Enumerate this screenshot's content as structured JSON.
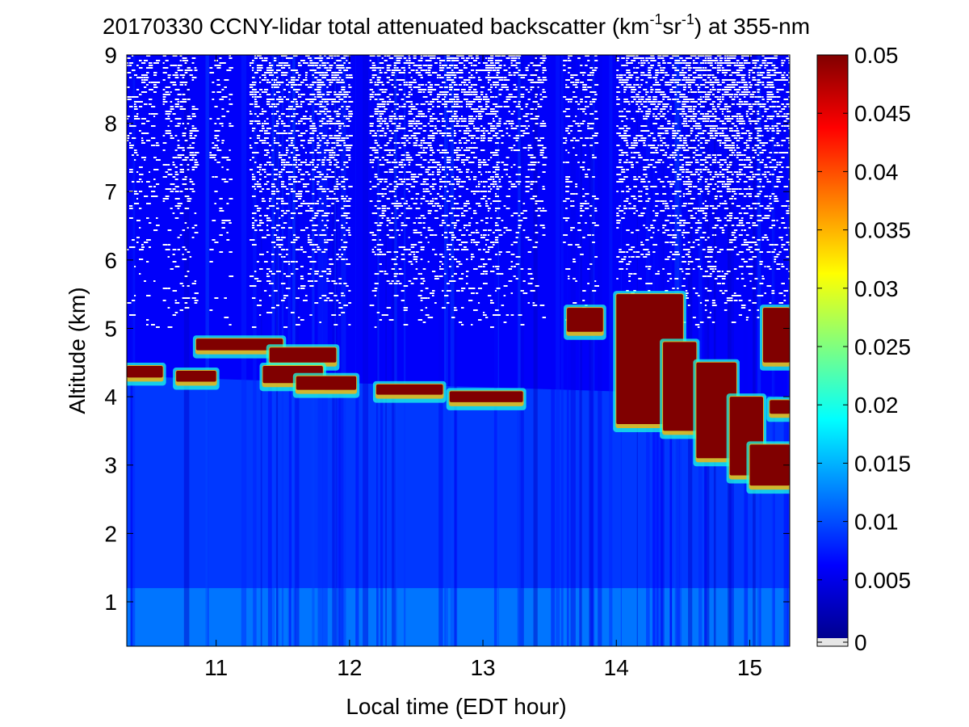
{
  "chart_data": {
    "type": "heatmap",
    "title": {
      "prefix": "20170330 CCNY-lidar total attenuated backscatter (km",
      "sup1": "-1",
      "mid": "sr",
      "sup2": "-1",
      "suffix": ") at 355-nm"
    },
    "xlabel": "Local time (EDT hour)",
    "ylabel": "Altitude (km)",
    "xlim": [
      10.33,
      15.3
    ],
    "ylim": [
      0.35,
      9
    ],
    "x_ticks": [
      11,
      12,
      13,
      14,
      15
    ],
    "x_tick_labels": [
      "11",
      "12",
      "13",
      "14",
      "15"
    ],
    "y_ticks": [
      1,
      2,
      3,
      4,
      5,
      6,
      7,
      8,
      9
    ],
    "y_tick_labels": [
      "1",
      "2",
      "3",
      "4",
      "5",
      "6",
      "7",
      "8",
      "9"
    ],
    "colorbar": {
      "colormap": "jet",
      "range": [
        0,
        0.05
      ],
      "ticks": [
        0,
        0.005,
        0.01,
        0.015,
        0.02,
        0.025,
        0.03,
        0.035,
        0.04,
        0.045,
        0.05
      ],
      "tick_labels": [
        "0",
        "0.005",
        "0.01",
        "0.015",
        "0.02",
        "0.025",
        "0.03",
        "0.035",
        "0.04",
        "0.045",
        "0.05"
      ],
      "underflow_color": "#e6e6e6",
      "position": "right"
    },
    "noise_color": "#ffffff",
    "background_value": 0.006,
    "boundary_layer": {
      "top_start_km": 4.3,
      "top_end_km": 4.0,
      "surface_value": 0.013
    },
    "cloud_layers": [
      {
        "x": [
          10.33,
          10.6
        ],
        "base_km": 4.28,
        "top_km": 4.45,
        "value": 0.05
      },
      {
        "x": [
          10.7,
          11.0
        ],
        "base_km": 4.22,
        "top_km": 4.38,
        "value": 0.05
      },
      {
        "x": [
          10.85,
          11.5
        ],
        "base_km": 4.68,
        "top_km": 4.85,
        "value": 0.05
      },
      {
        "x": [
          11.4,
          11.9
        ],
        "base_km": 4.5,
        "top_km": 4.72,
        "value": 0.05
      },
      {
        "x": [
          11.35,
          11.8
        ],
        "base_km": 4.2,
        "top_km": 4.45,
        "value": 0.05
      },
      {
        "x": [
          11.6,
          12.05
        ],
        "base_km": 4.1,
        "top_km": 4.3,
        "value": 0.05
      },
      {
        "x": [
          12.2,
          12.7
        ],
        "base_km": 4.03,
        "top_km": 4.18,
        "value": 0.05
      },
      {
        "x": [
          12.75,
          13.3
        ],
        "base_km": 3.92,
        "top_km": 4.08,
        "value": 0.05
      },
      {
        "x": [
          13.63,
          13.9
        ],
        "base_km": 4.95,
        "top_km": 5.3,
        "value": 0.05
      },
      {
        "x": [
          14.0,
          14.5
        ],
        "base_km": 3.6,
        "top_km": 5.5,
        "value": 0.05
      },
      {
        "x": [
          14.35,
          14.6
        ],
        "base_km": 3.5,
        "top_km": 4.8,
        "value": 0.05
      },
      {
        "x": [
          14.6,
          14.9
        ],
        "base_km": 3.1,
        "top_km": 4.5,
        "value": 0.05
      },
      {
        "x": [
          14.85,
          15.1
        ],
        "base_km": 2.85,
        "top_km": 4.0,
        "value": 0.05
      },
      {
        "x": [
          15.0,
          15.3
        ],
        "base_km": 2.7,
        "top_km": 3.3,
        "value": 0.05
      },
      {
        "x": [
          15.1,
          15.3
        ],
        "base_km": 4.5,
        "top_km": 5.3,
        "value": 0.05
      },
      {
        "x": [
          15.15,
          15.3
        ],
        "base_km": 3.75,
        "top_km": 3.95,
        "value": 0.05
      }
    ]
  }
}
